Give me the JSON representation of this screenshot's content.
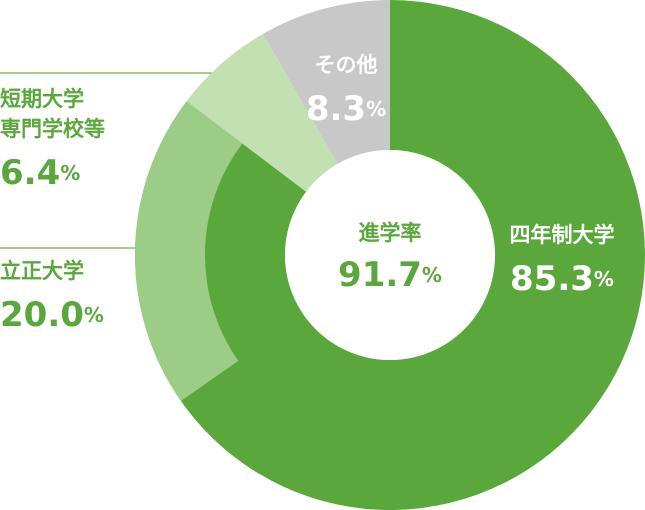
{
  "chart_data": {
    "type": "donut",
    "categories": [
      "四年制大学",
      "短期大学\n専門学校等",
      "その他"
    ],
    "values": [
      85.3,
      6.4,
      8.3
    ],
    "value_labels": [
      "85.3%",
      "6.4%",
      "8.3%"
    ],
    "colors": [
      "#5aa83c",
      "#c3e0b3",
      "#c8c8c8"
    ],
    "sub_segment": {
      "name": "立正大学",
      "value": 20.0,
      "value_label": "20.0%",
      "color": "#9dcc87"
    },
    "center_label": "進学率",
    "center_value": 91.7,
    "center_value_label": "91.7%"
  }
}
